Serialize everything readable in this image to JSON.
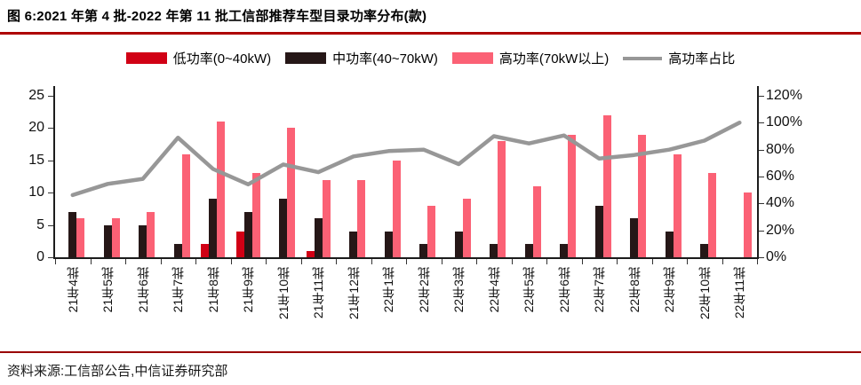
{
  "title": "图 6:2021 年第 4 批-2022 年第 11 批工信部推荐车型目录功率分布(款)",
  "footer": {
    "source": "资料来源:工信部公告,中信证券研究部"
  },
  "accent": {
    "title_rule": "#AE0000",
    "footer_rule": "#990000"
  },
  "legend": [
    {
      "label": "低功率(0~40kW)",
      "type": "rect",
      "color": "#D10015"
    },
    {
      "label": "中功率(40~70kW)",
      "type": "rect",
      "color": "#261717"
    },
    {
      "label": "高功率(70kW以上)",
      "type": "rect",
      "color": "#FB6175"
    },
    {
      "label": "高功率占比",
      "type": "line",
      "color": "#979797"
    }
  ],
  "chart_data": {
    "type": "bar",
    "title": "2021年第4批-2022年第11批工信部推荐车型目录功率分布(款)",
    "categories": [
      "21年4批",
      "21年5批",
      "21年6批",
      "21年7批",
      "21年8批",
      "21年9批",
      "21年10批",
      "21年11批",
      "21年12批",
      "22年1批",
      "22年2批",
      "22年3批",
      "22年4批",
      "22年5批",
      "22年6批",
      "22年7批",
      "22年8批",
      "22年9批",
      "22年10批",
      "22年11批"
    ],
    "series": [
      {
        "key": "low",
        "name": "低功率(0~40kW)",
        "type": "bar",
        "axis": "left",
        "color": "#D10015",
        "values": [
          0,
          0,
          0,
          0,
          2,
          4,
          0,
          1,
          0,
          0,
          0,
          0,
          0,
          0,
          0,
          0,
          0,
          0,
          0,
          0
        ]
      },
      {
        "key": "mid",
        "name": "中功率(40~70kW)",
        "type": "bar",
        "axis": "left",
        "color": "#261717",
        "values": [
          7,
          5,
          5,
          2,
          9,
          7,
          9,
          6,
          4,
          4,
          2,
          4,
          2,
          2,
          2,
          8,
          6,
          4,
          2,
          0
        ]
      },
      {
        "key": "high",
        "name": "高功率(70kW以上)",
        "type": "bar",
        "axis": "left",
        "color": "#FB6175",
        "values": [
          6,
          6,
          7,
          16,
          21,
          13,
          20,
          12,
          12,
          15,
          8,
          9,
          18,
          11,
          19,
          22,
          19,
          16,
          13,
          10
        ]
      },
      {
        "key": "ratio",
        "name": "高功率占比",
        "type": "line",
        "axis": "right",
        "color": "#979797",
        "values": [
          46.2,
          54.5,
          58.3,
          88.9,
          65.6,
          54.2,
          69.0,
          63.2,
          75.0,
          78.9,
          80.0,
          69.2,
          90.0,
          84.6,
          90.5,
          73.3,
          76.0,
          80.0,
          86.7,
          100.0
        ]
      }
    ],
    "y_left": {
      "min": 0,
      "max": 25,
      "step": 5,
      "suffix": ""
    },
    "y_right": {
      "min": 0,
      "max": 120,
      "step": 20,
      "suffix": "%"
    },
    "grid": false,
    "legend_position": "top"
  }
}
